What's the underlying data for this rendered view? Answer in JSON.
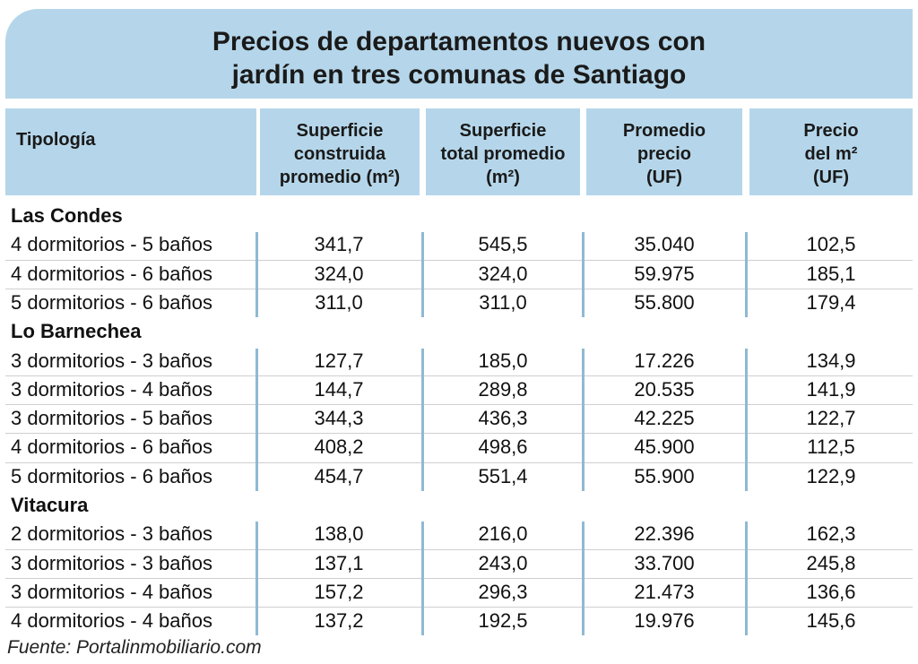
{
  "title": {
    "line1": "Precios de departamentos nuevos con",
    "line2": "jardín en tres comunas de Santiago"
  },
  "columns": [
    {
      "lines": [
        "Tipología"
      ]
    },
    {
      "lines": [
        "Superficie",
        "construida",
        "promedio (m²)"
      ]
    },
    {
      "lines": [
        "Superficie",
        "total promedio",
        "(m²)"
      ]
    },
    {
      "lines": [
        "Promedio",
        "precio",
        "(UF)"
      ]
    },
    {
      "lines": [
        "Precio",
        "del m²",
        "(UF)"
      ]
    }
  ],
  "chart_data": {
    "type": "table",
    "groups": [
      {
        "name": "Las Condes",
        "rows": [
          [
            "4 dormitorios - 5 baños",
            "341,7",
            "545,5",
            "35.040",
            "102,5"
          ],
          [
            "4 dormitorios - 6 baños",
            "324,0",
            "324,0",
            "59.975",
            "185,1"
          ],
          [
            "5 dormitorios - 6 baños",
            "311,0",
            "311,0",
            "55.800",
            "179,4"
          ]
        ]
      },
      {
        "name": "Lo Barnechea",
        "rows": [
          [
            "3 dormitorios - 3 baños",
            "127,7",
            "185,0",
            "17.226",
            "134,9"
          ],
          [
            "3 dormitorios - 4 baños",
            "144,7",
            "289,8",
            "20.535",
            "141,9"
          ],
          [
            "3 dormitorios - 5 baños",
            "344,3",
            "436,3",
            "42.225",
            "122,7"
          ],
          [
            "4 dormitorios - 6 baños",
            "408,2",
            "498,6",
            "45.900",
            "112,5"
          ],
          [
            "5 dormitorios - 6 baños",
            "454,7",
            "551,4",
            "55.900",
            "122,9"
          ]
        ]
      },
      {
        "name": "Vitacura",
        "rows": [
          [
            "2 dormitorios - 3 baños",
            "138,0",
            "216,0",
            "22.396",
            "162,3"
          ],
          [
            "3 dormitorios - 3 baños",
            "137,1",
            "243,0",
            "33.700",
            "245,8"
          ],
          [
            "3 dormitorios - 4 baños",
            "157,2",
            "296,3",
            "21.473",
            "136,6"
          ],
          [
            "4 dormitorios - 4 baños",
            "137,2",
            "192,5",
            "19.976",
            "145,6"
          ]
        ]
      }
    ]
  },
  "source": "Fuente: Portalinmobiliario.com",
  "colors": {
    "header_bg": "#b5d6ea",
    "separator": "#8fb9d4"
  }
}
